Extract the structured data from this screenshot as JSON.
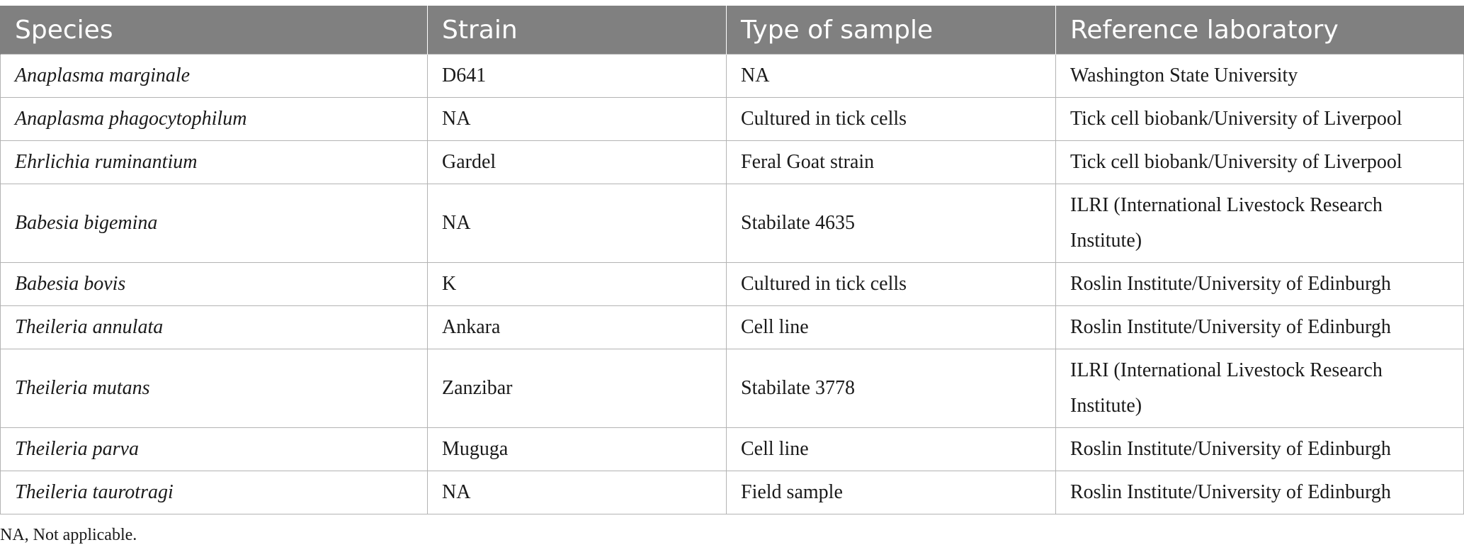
{
  "table": {
    "headers": [
      "Species",
      "Strain",
      "Type of sample",
      "Reference laboratory"
    ],
    "rows": [
      {
        "species": "Anaplasma marginale",
        "strain": "D641",
        "sample": "NA",
        "lab": "Washington State University"
      },
      {
        "species": "Anaplasma phagocytophilum",
        "strain": "NA",
        "sample": "Cultured in tick cells",
        "lab": "Tick cell biobank/University of Liverpool"
      },
      {
        "species": "Ehrlichia ruminantium",
        "strain": "Gardel",
        "sample": "Feral Goat strain",
        "lab": "Tick cell biobank/University of Liverpool"
      },
      {
        "species": "Babesia bigemina",
        "strain": "NA",
        "sample": "Stabilate 4635",
        "lab": "ILRI (International Livestock Research Institute)"
      },
      {
        "species": "Babesia bovis",
        "strain": "K",
        "sample": "Cultured in tick cells",
        "lab": "Roslin Institute/University of Edinburgh"
      },
      {
        "species": "Theileria annulata",
        "strain": "Ankara",
        "sample": "Cell line",
        "lab": "Roslin Institute/University of Edinburgh"
      },
      {
        "species": "Theileria mutans",
        "strain": "Zanzibar",
        "sample": "Stabilate 3778",
        "lab": "ILRI (International Livestock Research Institute)"
      },
      {
        "species": "Theileria parva",
        "strain": "Muguga",
        "sample": "Cell line",
        "lab": "Roslin Institute/University of Edinburgh"
      },
      {
        "species": "Theileria taurotragi",
        "strain": "NA",
        "sample": "Field sample",
        "lab": "Roslin Institute/University of Edinburgh"
      }
    ]
  },
  "footnote": "NA, Not applicable."
}
